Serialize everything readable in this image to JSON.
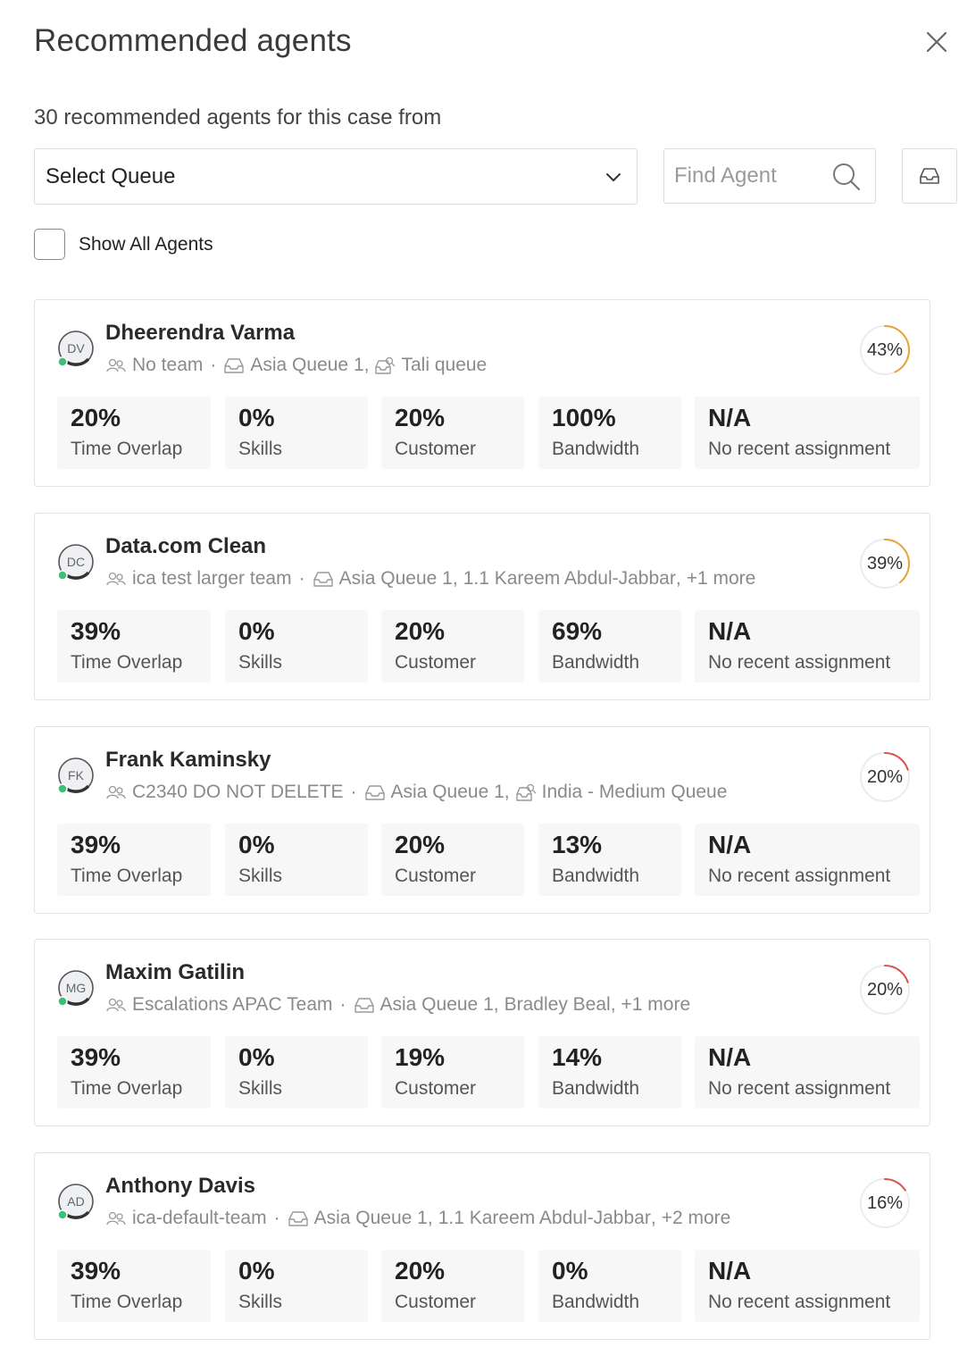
{
  "header": {
    "title": "Recommended agents",
    "subtitle": "30 recommended agents for this case from"
  },
  "controls": {
    "queue_select_label": "Select Queue",
    "search_placeholder": "Find Agent",
    "show_all_label": "Show All Agents"
  },
  "agents": [
    {
      "initials": "DV",
      "name": "Dheerendra Varma",
      "team": "No team",
      "queues": [
        "Asia Queue 1",
        "Tali queue"
      ],
      "score": "43%",
      "score_value": 43,
      "score_color": "#e8a23c",
      "metrics": [
        {
          "value": "20%",
          "label": "Time Overlap"
        },
        {
          "value": "0%",
          "label": "Skills"
        },
        {
          "value": "20%",
          "label": "Customer"
        },
        {
          "value": "100%",
          "label": "Bandwidth"
        },
        {
          "value": "N/A",
          "label": "No recent assignment"
        }
      ]
    },
    {
      "initials": "DC",
      "name": "Data.com Clean",
      "team": "ica test larger team",
      "queues": [
        "Asia Queue 1",
        "1.1 Kareem Abdul-Jabbar"
      ],
      "more": "+1 more",
      "score": "39%",
      "score_value": 39,
      "score_color": "#e8a23c",
      "metrics": [
        {
          "value": "39%",
          "label": "Time Overlap"
        },
        {
          "value": "0%",
          "label": "Skills"
        },
        {
          "value": "20%",
          "label": "Customer"
        },
        {
          "value": "69%",
          "label": "Bandwidth"
        },
        {
          "value": "N/A",
          "label": "No recent assignment"
        }
      ]
    },
    {
      "initials": "FK",
      "name": "Frank Kaminsky",
      "team": "C2340 DO NOT DELETE",
      "queues": [
        "Asia Queue 1",
        "India - Medium Queue"
      ],
      "score": "20%",
      "score_value": 20,
      "score_color": "#d9534f",
      "metrics": [
        {
          "value": "39%",
          "label": "Time Overlap"
        },
        {
          "value": "0%",
          "label": "Skills"
        },
        {
          "value": "20%",
          "label": "Customer"
        },
        {
          "value": "13%",
          "label": "Bandwidth"
        },
        {
          "value": "N/A",
          "label": "No recent assignment"
        }
      ]
    },
    {
      "initials": "MG",
      "name": "Maxim Gatilin",
      "team": "Escalations APAC Team",
      "queues": [
        "Asia Queue 1",
        "Bradley Beal"
      ],
      "more": "+1 more",
      "score": "20%",
      "score_value": 20,
      "score_color": "#d9534f",
      "metrics": [
        {
          "value": "39%",
          "label": "Time Overlap"
        },
        {
          "value": "0%",
          "label": "Skills"
        },
        {
          "value": "19%",
          "label": "Customer"
        },
        {
          "value": "14%",
          "label": "Bandwidth"
        },
        {
          "value": "N/A",
          "label": "No recent assignment"
        }
      ]
    },
    {
      "initials": "AD",
      "name": "Anthony Davis",
      "team": "ica-default-team",
      "queues": [
        "Asia Queue 1",
        "1.1 Kareem Abdul-Jabbar"
      ],
      "more": "+2 more",
      "score": "16%",
      "score_value": 16,
      "score_color": "#d9534f",
      "metrics": [
        {
          "value": "39%",
          "label": "Time Overlap"
        },
        {
          "value": "0%",
          "label": "Skills"
        },
        {
          "value": "20%",
          "label": "Customer"
        },
        {
          "value": "0%",
          "label": "Bandwidth"
        },
        {
          "value": "N/A",
          "label": "No recent assignment"
        }
      ]
    }
  ],
  "icons": {
    "close": "close-icon",
    "chevron": "chevron-down-icon",
    "search": "search-icon",
    "inbox": "inbox-icon",
    "team": "team-icon",
    "queue": "queue-icon"
  },
  "colors": {
    "online_status": "#3dbf7a"
  }
}
